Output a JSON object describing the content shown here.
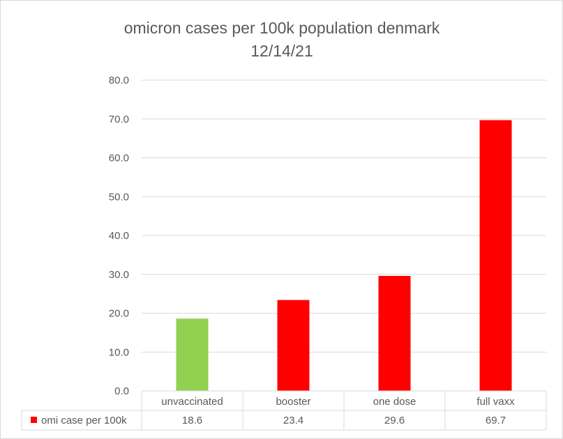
{
  "chart_data": {
    "type": "bar",
    "title": [
      "omicron cases per 100k population denmark",
      "12/14/21"
    ],
    "categories": [
      "unvaccinated",
      "booster",
      "one dose",
      "full vaxx"
    ],
    "series": [
      {
        "name": "omi case per 100k",
        "color": "#ff0000",
        "values": [
          18.6,
          23.4,
          29.6,
          69.7
        ],
        "value_labels": [
          "18.6",
          "23.4",
          "29.6",
          "69.7"
        ],
        "point_colors": [
          "#92d050",
          "#ff0000",
          "#ff0000",
          "#ff0000"
        ]
      }
    ],
    "ylim": [
      0,
      80
    ],
    "yticks": [
      0,
      10,
      20,
      30,
      40,
      50,
      60,
      70,
      80
    ],
    "ytick_labels": [
      "0.0",
      "10.0",
      "20.0",
      "30.0",
      "40.0",
      "50.0",
      "60.0",
      "70.0",
      "80.0"
    ],
    "grid": true,
    "legend": "data-table",
    "xlabel": "",
    "ylabel": ""
  }
}
